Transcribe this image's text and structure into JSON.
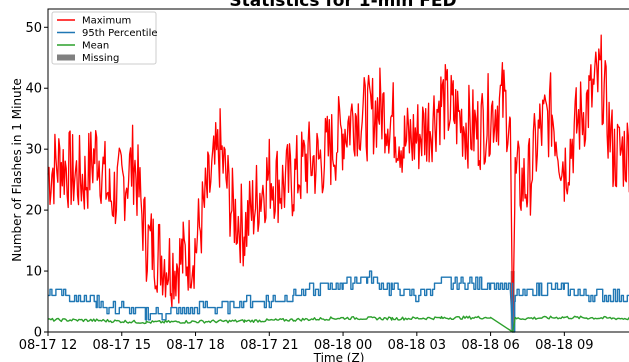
{
  "chart_data": {
    "type": "line",
    "title": "Statistics for 1-min FED",
    "xlabel": "Time (Z)",
    "ylabel": "Number of Flashes in 1 Minute",
    "x_range": [
      "2024-08-17T12:00",
      "2024-08-18T11:40"
    ],
    "xlim_hours": [
      0,
      23.67
    ],
    "ylim": [
      0,
      53
    ],
    "x_ticks": [
      {
        "label": "08-17 12",
        "hour": 0
      },
      {
        "label": "08-17 15",
        "hour": 3
      },
      {
        "label": "08-17 18",
        "hour": 6
      },
      {
        "label": "08-17 21",
        "hour": 9
      },
      {
        "label": "08-18 00",
        "hour": 12
      },
      {
        "label": "08-18 03",
        "hour": 15
      },
      {
        "label": "08-18 06",
        "hour": 18
      },
      {
        "label": "08-18 09",
        "hour": 21
      }
    ],
    "y_ticks": [
      0,
      10,
      20,
      30,
      40,
      50
    ],
    "legend": {
      "placement": "top-left"
    },
    "missing_hour": 18.9,
    "series": [
      {
        "name": "Maximum",
        "color": "#ff0000",
        "kind": "line",
        "points": [
          [
            0,
            26
          ],
          [
            0.5,
            28
          ],
          [
            1,
            26
          ],
          [
            1.5,
            25
          ],
          [
            2,
            30
          ],
          [
            2.5,
            22
          ],
          [
            3,
            24
          ],
          [
            3.5,
            28
          ],
          [
            4,
            15
          ],
          [
            4.5,
            13
          ],
          [
            5,
            11
          ],
          [
            5.5,
            12
          ],
          [
            6,
            14
          ],
          [
            6.5,
            23
          ],
          [
            7,
            30
          ],
          [
            7.5,
            20
          ],
          [
            8,
            17
          ],
          [
            8.5,
            22
          ],
          [
            9,
            26
          ],
          [
            9.5,
            24
          ],
          [
            10,
            25
          ],
          [
            10.5,
            28
          ],
          [
            11,
            28
          ],
          [
            11.5,
            30
          ],
          [
            12,
            33
          ],
          [
            12.5,
            36
          ],
          [
            13,
            35
          ],
          [
            13.5,
            37
          ],
          [
            14,
            35
          ],
          [
            14.5,
            31
          ],
          [
            15,
            32
          ],
          [
            15.5,
            34
          ],
          [
            16,
            38
          ],
          [
            16.5,
            36
          ],
          [
            17,
            34
          ],
          [
            17.5,
            33
          ],
          [
            18,
            36
          ],
          [
            18.5,
            38
          ],
          [
            18.8,
            35
          ],
          [
            18.9,
            0
          ],
          [
            19,
            25
          ],
          [
            19.5,
            24
          ],
          [
            20,
            33
          ],
          [
            20.5,
            36
          ],
          [
            21,
            27
          ],
          [
            21.5,
            34
          ],
          [
            22,
            38
          ],
          [
            22.5,
            42
          ],
          [
            23,
            29
          ],
          [
            23.67,
            30
          ]
        ]
      },
      {
        "name": "95th Percentile",
        "color": "#1f77b4",
        "kind": "step",
        "points": [
          [
            0,
            7
          ],
          [
            1,
            6
          ],
          [
            2,
            5
          ],
          [
            2.5,
            4
          ],
          [
            3,
            4
          ],
          [
            4,
            3
          ],
          [
            5,
            3
          ],
          [
            6,
            4
          ],
          [
            7,
            4
          ],
          [
            8,
            5
          ],
          [
            9,
            5
          ],
          [
            10,
            6
          ],
          [
            11,
            7
          ],
          [
            12,
            8
          ],
          [
            13,
            9
          ],
          [
            14,
            7
          ],
          [
            15,
            6
          ],
          [
            16,
            8
          ],
          [
            17,
            8
          ],
          [
            18,
            8
          ],
          [
            18.8,
            7
          ],
          [
            18.9,
            0
          ],
          [
            19,
            6
          ],
          [
            20,
            7
          ],
          [
            21,
            7
          ],
          [
            22,
            6
          ],
          [
            23,
            6
          ],
          [
            23.67,
            6
          ]
        ]
      },
      {
        "name": "Mean",
        "color": "#2ca02c",
        "kind": "line",
        "points": [
          [
            0,
            2
          ],
          [
            2,
            1.9
          ],
          [
            4,
            1.6
          ],
          [
            6,
            1.7
          ],
          [
            8,
            1.8
          ],
          [
            10,
            2
          ],
          [
            12,
            2.3
          ],
          [
            14,
            2.2
          ],
          [
            16,
            2.3
          ],
          [
            18,
            2.4
          ],
          [
            18.9,
            0
          ],
          [
            19,
            2.2
          ],
          [
            21,
            2.4
          ],
          [
            23.67,
            2.2
          ]
        ]
      },
      {
        "name": "Missing",
        "color": "#808080",
        "kind": "bar"
      }
    ]
  }
}
